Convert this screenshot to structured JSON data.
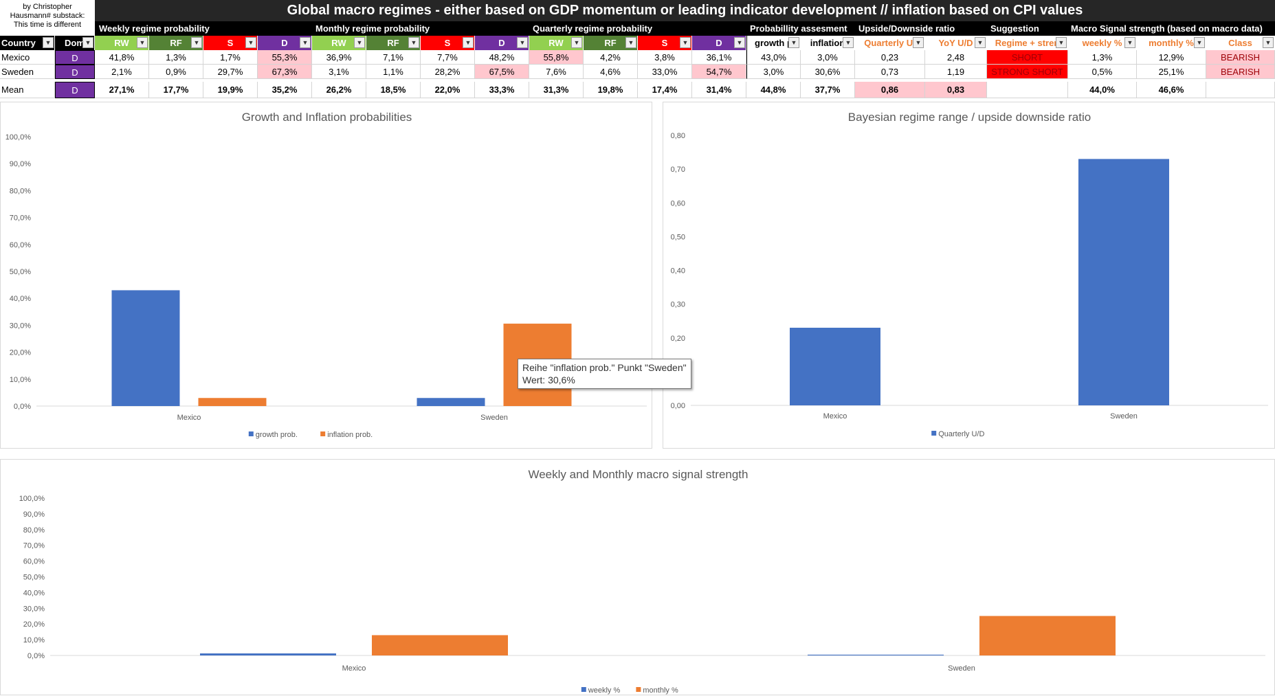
{
  "brand": {
    "line1": "by Christopher",
    "line2": "Hausmann# substack:",
    "line3": "This time is different"
  },
  "title": "Global macro regimes - either based on GDP momentum or leading indicator development // inflation based on CPI values",
  "groups": [
    "Weekly regime probability",
    "Monthly regime probability",
    "Quarterly regime probability",
    "Probabillity assesment",
    "Upside/Downside ratio",
    "Suggestion",
    "Macro Signal strength (based on macro data)"
  ],
  "headers": {
    "country": "Country",
    "dom": "Dom",
    "w_rw": "RW",
    "w_rf": "RF",
    "w_s": "S",
    "w_d": "D",
    "m_rw": "RW",
    "m_rf": "RF",
    "m_s": "S",
    "m_d": "D",
    "q_rw": "RW",
    "q_rf": "RF",
    "q_s": "S",
    "q_d": "D",
    "growth": "growth p",
    "inflation": "inflation",
    "qud": "Quarterly U/",
    "yud": "YoY U/D",
    "regime": "Regime + stren",
    "weekly": "weekly %",
    "monthly": "monthly %",
    "class": "Class"
  },
  "rows": [
    {
      "country": "Mexico",
      "dom": "D",
      "w_rw": "41,8%",
      "w_rf": "1,3%",
      "w_s": "1,7%",
      "w_d": "55,3%",
      "m_rw": "36,9%",
      "m_rf": "7,1%",
      "m_s": "7,7%",
      "m_d": "48,2%",
      "q_rw": "55,8%",
      "q_rf": "4,2%",
      "q_s": "3,8%",
      "q_d": "36,1%",
      "growth": "43,0%",
      "inflation": "3,0%",
      "qud": "0,23",
      "yud": "2,48",
      "regime": "SHORT",
      "weekly": "1,3%",
      "monthly": "12,9%",
      "class": "BEARISH"
    },
    {
      "country": "Sweden",
      "dom": "D",
      "w_rw": "2,1%",
      "w_rf": "0,9%",
      "w_s": "29,7%",
      "w_d": "67,3%",
      "m_rw": "3,1%",
      "m_rf": "1,1%",
      "m_s": "28,2%",
      "m_d": "67,5%",
      "q_rw": "7,6%",
      "q_rf": "4,6%",
      "q_s": "33,0%",
      "q_d": "54,7%",
      "growth": "3,0%",
      "inflation": "30,6%",
      "qud": "0,73",
      "yud": "1,19",
      "regime": "STRONG SHORT",
      "weekly": "0,5%",
      "monthly": "25,1%",
      "class": "BEARISH"
    },
    {
      "country": "Mean",
      "dom": "D",
      "w_rw": "27,1%",
      "w_rf": "17,7%",
      "w_s": "19,9%",
      "w_d": "35,2%",
      "m_rw": "26,2%",
      "m_rf": "18,5%",
      "m_s": "22,0%",
      "m_d": "33,3%",
      "q_rw": "31,3%",
      "q_rf": "19,8%",
      "q_s": "17,4%",
      "q_d": "31,4%",
      "growth": "44,8%",
      "inflation": "37,7%",
      "qud": "0,86",
      "yud": "0,83",
      "regime": "",
      "weekly": "44,0%",
      "monthly": "46,6%",
      "class": ""
    }
  ],
  "colors": {
    "rw": "#92d050",
    "rf": "#548235",
    "s": "#ff0000",
    "d": "#7030a0",
    "series_blue": "#4472c4",
    "series_orange": "#ed7d31",
    "pink": "#ffc7ce",
    "title_bg": "#262626"
  },
  "tooltip": {
    "line1": "Reihe \"inflation prob.\" Punkt \"Sweden\"",
    "line2": "Wert: 30,6%"
  },
  "chart_data": [
    {
      "type": "bar",
      "title": "Growth and Inflation probabilities",
      "categories": [
        "Mexico",
        "Sweden"
      ],
      "series": [
        {
          "name": "growth prob.",
          "values": [
            43.0,
            3.0
          ],
          "color": "#4472c4"
        },
        {
          "name": "inflation prob.",
          "values": [
            3.0,
            30.6
          ],
          "color": "#ed7d31"
        }
      ],
      "ylim": [
        0,
        100
      ],
      "yticks": [
        "0,0%",
        "10,0%",
        "20,0%",
        "30,0%",
        "40,0%",
        "50,0%",
        "60,0%",
        "70,0%",
        "80,0%",
        "90,0%",
        "100,0%"
      ],
      "legend": "bottom"
    },
    {
      "type": "bar",
      "title": "Bayesian regime range / upside downside ratio",
      "categories": [
        "Mexico",
        "Sweden"
      ],
      "series": [
        {
          "name": "Quarterly U/D",
          "values": [
            0.23,
            0.73
          ],
          "color": "#4472c4"
        }
      ],
      "ylim": [
        0,
        0.8
      ],
      "yticks": [
        "0,00",
        "0,10",
        "0,20",
        "0,30",
        "0,40",
        "0,50",
        "0,60",
        "0,70",
        "0,80"
      ],
      "legend": "bottom"
    },
    {
      "type": "bar",
      "title": "Weekly and Monthly macro signal strength",
      "categories": [
        "Mexico",
        "Sweden"
      ],
      "series": [
        {
          "name": "weekly %",
          "values": [
            1.3,
            0.5
          ],
          "color": "#4472c4"
        },
        {
          "name": "monthly %",
          "values": [
            12.9,
            25.1
          ],
          "color": "#ed7d31"
        }
      ],
      "ylim": [
        0,
        100
      ],
      "yticks": [
        "0,0%",
        "10,0%",
        "20,0%",
        "30,0%",
        "40,0%",
        "50,0%",
        "60,0%",
        "70,0%",
        "80,0%",
        "90,0%",
        "100,0%"
      ],
      "legend": "bottom"
    }
  ]
}
